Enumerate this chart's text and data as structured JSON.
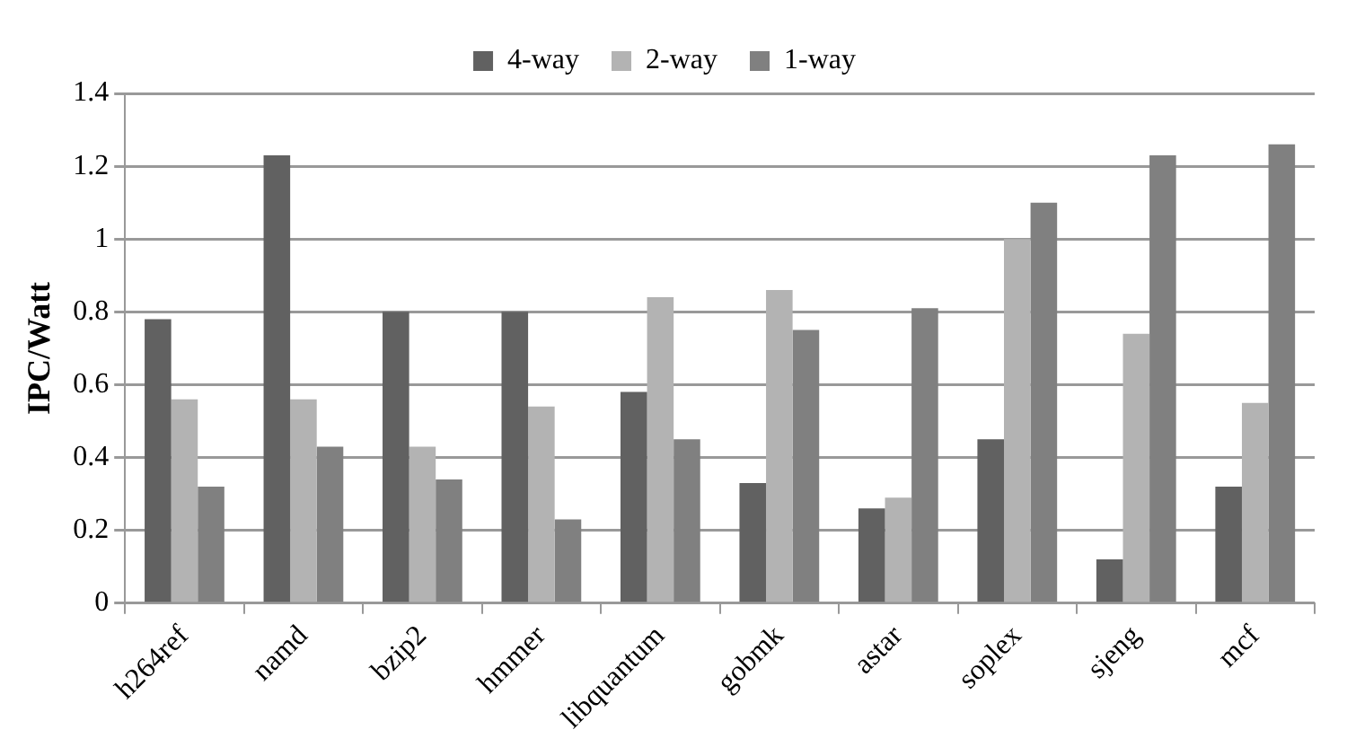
{
  "chart_data": {
    "type": "bar",
    "ylabel": "IPC/Watt",
    "categories": [
      "h264ref",
      "namd",
      "bzip2",
      "hmmer",
      "libquantum",
      "gobmk",
      "astar",
      "soplex",
      "sjeng",
      "mcf"
    ],
    "series": [
      {
        "name": "4-way",
        "color": "#616161",
        "values": [
          0.78,
          1.23,
          0.8,
          0.8,
          0.58,
          0.33,
          0.26,
          0.45,
          0.12,
          0.32
        ]
      },
      {
        "name": "2-way",
        "color": "#b3b3b3",
        "values": [
          0.56,
          0.56,
          0.43,
          0.54,
          0.84,
          0.86,
          0.29,
          1.0,
          0.74,
          0.55
        ]
      },
      {
        "name": "1-way",
        "color": "#808080",
        "values": [
          0.32,
          0.43,
          0.34,
          0.23,
          0.45,
          0.75,
          0.81,
          1.1,
          1.23,
          1.26
        ]
      }
    ],
    "ylim": [
      0,
      1.4
    ],
    "yticks": [
      0,
      0.2,
      0.4,
      0.6,
      0.8,
      1,
      1.2,
      1.4
    ],
    "grid": "y",
    "legend": "top"
  }
}
